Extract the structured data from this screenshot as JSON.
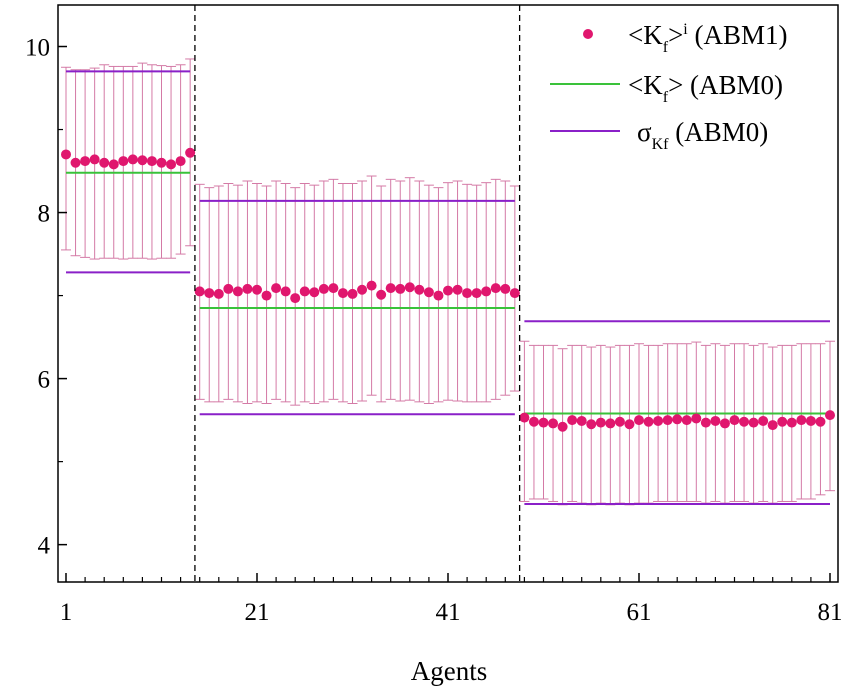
{
  "chart_data": {
    "type": "scatter",
    "xlabel": "Agents",
    "ylabel": "",
    "xlim": [
      1,
      81
    ],
    "ylim": [
      3.55,
      10.5
    ],
    "xticks": [
      1,
      21,
      41,
      61,
      81
    ],
    "yticks": [
      4,
      6,
      8,
      10
    ],
    "grid": false,
    "legend_position": "top-right",
    "group_separators": [
      14.5,
      48.5
    ],
    "colors": {
      "points": "#e0176e",
      "errorbars": "#d47aa6",
      "mean_line": "#3ac23a",
      "sigma_line": "#8a20c8",
      "separator": "#000000"
    },
    "legend": [
      {
        "key": "points",
        "base": "<K",
        "sub": "f",
        "mid": ">",
        "sup": "i",
        "tail": " (ABM1)"
      },
      {
        "key": "mean",
        "base": "<K",
        "sub": "f",
        "mid": ">",
        "sup": "",
        "tail": " (ABM0)"
      },
      {
        "key": "sigma",
        "base": "σ",
        "sub": "Kf",
        "mid": "",
        "sup": "",
        "tail": "  (ABM0)"
      }
    ],
    "series": [
      {
        "name": "<Kf>i (ABM1)",
        "x": [
          1,
          2,
          3,
          4,
          5,
          6,
          7,
          8,
          9,
          10,
          11,
          12,
          13,
          14
        ],
        "y": [
          8.7,
          8.6,
          8.62,
          8.64,
          8.6,
          8.58,
          8.62,
          8.64,
          8.63,
          8.62,
          8.6,
          8.58,
          8.62,
          8.72
        ],
        "err_lower": [
          7.55,
          7.48,
          7.46,
          7.44,
          7.45,
          7.45,
          7.44,
          7.45,
          7.45,
          7.44,
          7.45,
          7.45,
          7.5,
          7.6
        ],
        "err_upper": [
          9.75,
          9.72,
          9.72,
          9.74,
          9.78,
          9.76,
          9.76,
          9.76,
          9.8,
          9.78,
          9.77,
          9.76,
          9.78,
          9.85
        ]
      },
      {
        "name": "<Kf>i (ABM1)",
        "x": [
          15,
          16,
          17,
          18,
          19,
          20,
          21,
          22,
          23,
          24,
          25,
          26,
          27,
          28,
          29,
          30,
          31,
          32,
          33,
          34,
          35,
          36,
          37,
          38,
          39,
          40,
          41,
          42,
          43,
          44,
          45,
          46,
          47,
          48
        ],
        "y": [
          7.05,
          7.03,
          7.02,
          7.08,
          7.05,
          7.08,
          7.07,
          7.0,
          7.09,
          7.05,
          6.97,
          7.05,
          7.04,
          7.08,
          7.09,
          7.03,
          7.02,
          7.07,
          7.12,
          7.01,
          7.09,
          7.08,
          7.1,
          7.07,
          7.04,
          7.0,
          7.06,
          7.07,
          7.03,
          7.03,
          7.05,
          7.09,
          7.08,
          7.03
        ],
        "err_lower": [
          5.75,
          5.72,
          5.72,
          5.75,
          5.72,
          5.7,
          5.72,
          5.7,
          5.75,
          5.72,
          5.68,
          5.72,
          5.7,
          5.72,
          5.75,
          5.72,
          5.7,
          5.73,
          5.8,
          5.72,
          5.75,
          5.73,
          5.74,
          5.72,
          5.7,
          5.72,
          5.74,
          5.73,
          5.72,
          5.72,
          5.72,
          5.75,
          5.8,
          5.85
        ],
        "err_upper": [
          8.34,
          8.3,
          8.32,
          8.35,
          8.33,
          8.38,
          8.35,
          8.32,
          8.38,
          8.35,
          8.3,
          8.35,
          8.33,
          8.38,
          8.4,
          8.35,
          8.35,
          8.38,
          8.44,
          8.32,
          8.4,
          8.38,
          8.42,
          8.38,
          8.33,
          8.3,
          8.36,
          8.38,
          8.34,
          8.33,
          8.36,
          8.4,
          8.38,
          8.32
        ]
      },
      {
        "name": "<Kf>i (ABM1)",
        "x": [
          49,
          50,
          51,
          52,
          53,
          54,
          55,
          56,
          57,
          58,
          59,
          60,
          61,
          62,
          63,
          64,
          65,
          66,
          67,
          68,
          69,
          70,
          71,
          72,
          73,
          74,
          75,
          76,
          77,
          78,
          79,
          80,
          81
        ],
        "y": [
          5.53,
          5.48,
          5.47,
          5.46,
          5.42,
          5.5,
          5.49,
          5.45,
          5.47,
          5.46,
          5.48,
          5.45,
          5.5,
          5.48,
          5.49,
          5.5,
          5.51,
          5.5,
          5.52,
          5.47,
          5.49,
          5.46,
          5.5,
          5.48,
          5.47,
          5.49,
          5.44,
          5.48,
          5.47,
          5.5,
          5.49,
          5.48,
          5.56
        ],
        "err_lower": [
          4.52,
          4.55,
          4.55,
          4.52,
          4.48,
          4.52,
          4.5,
          4.48,
          4.5,
          4.48,
          4.5,
          4.48,
          4.5,
          4.5,
          4.52,
          4.52,
          4.52,
          4.52,
          4.52,
          4.5,
          4.52,
          4.5,
          4.52,
          4.52,
          4.5,
          4.52,
          4.5,
          4.52,
          4.52,
          4.55,
          4.55,
          4.6,
          4.65
        ],
        "err_upper": [
          6.45,
          6.4,
          6.4,
          6.4,
          6.36,
          6.4,
          6.4,
          6.38,
          6.4,
          6.38,
          6.4,
          6.4,
          6.42,
          6.4,
          6.4,
          6.42,
          6.42,
          6.42,
          6.44,
          6.4,
          6.42,
          6.4,
          6.42,
          6.42,
          6.4,
          6.42,
          6.38,
          6.4,
          6.4,
          6.42,
          6.42,
          6.42,
          6.45
        ]
      },
      {
        "name": "<Kf> (ABM0)",
        "segments": [
          {
            "x0": 1,
            "x1": 14,
            "y": 8.48
          },
          {
            "x0": 15,
            "x1": 48,
            "y": 6.85
          },
          {
            "x0": 49,
            "x1": 81,
            "y": 5.58
          }
        ]
      },
      {
        "name": "σKf (ABM0)",
        "segments": [
          {
            "x0": 1,
            "x1": 14,
            "y": 9.7
          },
          {
            "x0": 1,
            "x1": 14,
            "y": 7.28
          },
          {
            "x0": 15,
            "x1": 48,
            "y": 8.14
          },
          {
            "x0": 15,
            "x1": 48,
            "y": 5.57
          },
          {
            "x0": 49,
            "x1": 81,
            "y": 6.69
          },
          {
            "x0": 49,
            "x1": 81,
            "y": 4.49
          }
        ]
      }
    ]
  }
}
